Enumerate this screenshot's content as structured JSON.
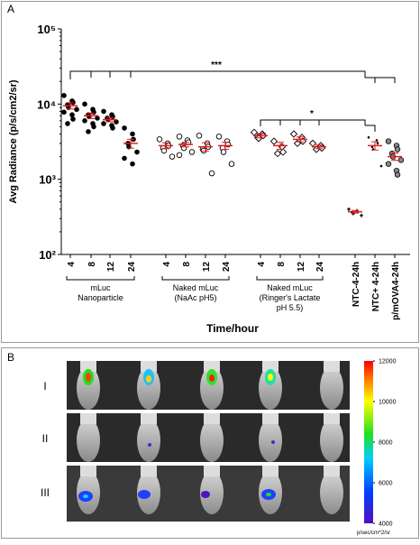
{
  "panel_labels": [
    "A",
    "B"
  ],
  "row_labels": [
    "I",
    "II",
    "III"
  ],
  "chart_data": [
    {
      "type": "scatter",
      "y_label": "Avg Radiance (p/s/cm2/sr)",
      "x_label": "Time/hour",
      "log_scale": true,
      "ylim": [
        100,
        100000
      ],
      "yticks": [
        {
          "value": 100,
          "label": "10²"
        },
        {
          "value": 1000,
          "label": "10³"
        },
        {
          "value": 10000,
          "label": "10⁴"
        },
        {
          "value": 100000,
          "label": "10⁵"
        }
      ],
      "categories": [
        "4",
        "8",
        "12",
        "24",
        "4",
        "8",
        "12",
        "24",
        "4",
        "8",
        "12",
        "24",
        "NTC-4-24h",
        "NTC+ 4-24h",
        "p/mOVA4-24h"
      ],
      "groups": [
        {
          "lines": [
            "mLuc",
            "Nanoparticle"
          ],
          "marker": "filled-circle"
        },
        {
          "lines": [
            "Naked mLuc",
            "(NaAc pH5)"
          ],
          "marker": "open-circle"
        },
        {
          "lines": [
            "Naked mLuc",
            "(Ringer's Lactate",
            "pH 5.5)"
          ],
          "marker": "open-diamond"
        }
      ],
      "mean_color": "#e02020",
      "means": [
        9500,
        7000,
        6200,
        3000,
        2800,
        2900,
        2700,
        2800,
        3800,
        2800,
        3400,
        2700,
        370,
        2800,
        2000
      ],
      "sem": [
        900,
        600,
        400,
        400,
        250,
        200,
        350,
        300,
        250,
        300,
        250,
        150,
        15,
        350,
        220
      ],
      "points": [
        [
          13000,
          11000,
          10500,
          9800,
          9000,
          8500,
          7800,
          7200,
          6300,
          5500
        ],
        [
          10000,
          8500,
          7800,
          7200,
          6800,
          6500,
          6000,
          5500,
          5000,
          4300
        ],
        [
          8000,
          7200,
          6800,
          6500,
          6200,
          5800,
          5500,
          5200,
          4800
        ],
        [
          4800,
          4000,
          3400,
          3000,
          2700,
          2300,
          1900,
          1600
        ],
        [
          3400,
          3000,
          2800,
          2600,
          2400,
          2000
        ],
        [
          3700,
          3300,
          3100,
          2800,
          2600,
          2300,
          2100
        ],
        [
          3800,
          3000,
          2700,
          2500,
          2400,
          1200
        ],
        [
          3700,
          3200,
          2900,
          2600,
          2300,
          1600
        ],
        [
          4200,
          4000,
          3800,
          3600,
          3500
        ],
        [
          3200,
          2700,
          2300,
          2200
        ],
        [
          4000,
          3600,
          3200,
          3000
        ],
        [
          3000,
          2800,
          2600,
          2500
        ],
        [
          400,
          380,
          370,
          360,
          350,
          330
        ],
        [
          3600,
          3300,
          3000,
          2700,
          2500,
          1500
        ],
        [
          3200,
          2800,
          2500,
          2200,
          2000,
          1800,
          1600,
          1300,
          1150
        ]
      ],
      "annotations": [
        "***",
        "*"
      ]
    },
    {
      "type": "colorbar",
      "label": "p/sec/cm^2/sr",
      "ylim": [
        4000,
        12000
      ],
      "yticks": [
        4000,
        6000,
        8000,
        10000,
        12000
      ]
    }
  ]
}
